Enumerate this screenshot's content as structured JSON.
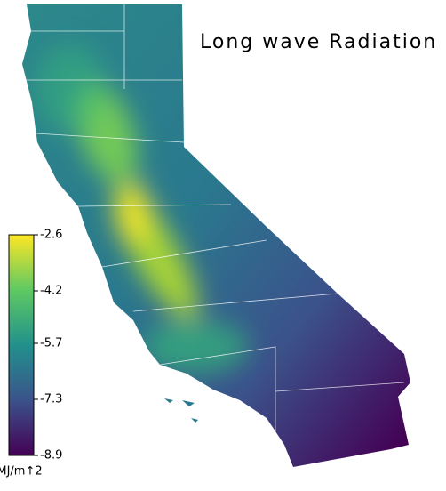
{
  "title": "Long wave Radiation",
  "colorbar": {
    "lim": [
      -8.9,
      -2.6
    ],
    "ticks": [
      -2.6,
      -4.2,
      -5.7,
      -7.3,
      -8.9
    ],
    "label": "MJ/m↑2"
  }
}
